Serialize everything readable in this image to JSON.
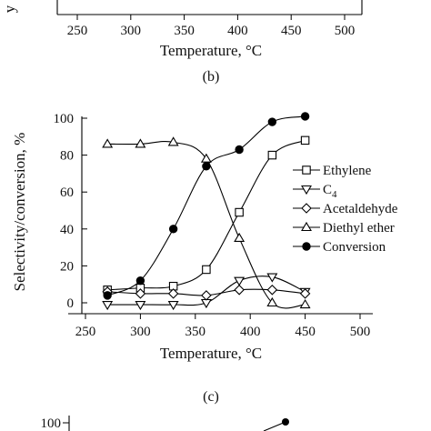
{
  "top_panel": {
    "x_ticks": [
      "250",
      "300",
      "350",
      "400",
      "450",
      "500"
    ],
    "xlabel": "Temperature, °C",
    "caption": "(b)",
    "clipped_y_label": "y"
  },
  "chart_data": {
    "type": "line",
    "caption": "(c)",
    "xlabel": "Temperature, °C",
    "ylabel": "Selectivity/conversion, %",
    "xlim": [
      250,
      500
    ],
    "ylim": [
      -10,
      105
    ],
    "x_ticks": [
      250,
      300,
      350,
      400,
      450,
      500
    ],
    "y_ticks": [
      0,
      20,
      40,
      60,
      80,
      100
    ],
    "grid": false,
    "legend_position": "right",
    "series": [
      {
        "name": "Ethylene",
        "marker": "square-open",
        "points": [
          [
            270,
            7
          ],
          [
            300,
            8
          ],
          [
            330,
            9
          ],
          [
            360,
            18
          ],
          [
            390,
            49
          ],
          [
            420,
            80
          ],
          [
            450,
            88
          ]
        ]
      },
      {
        "name": "C4",
        "marker": "triangle-down-open",
        "points": [
          [
            270,
            -1
          ],
          [
            300,
            -1
          ],
          [
            330,
            -1
          ],
          [
            360,
            0
          ],
          [
            390,
            12
          ],
          [
            420,
            14
          ],
          [
            450,
            6
          ]
        ]
      },
      {
        "name": "Acetaldehyde",
        "marker": "diamond-open",
        "points": [
          [
            270,
            6
          ],
          [
            300,
            5
          ],
          [
            330,
            5
          ],
          [
            360,
            4
          ],
          [
            390,
            7
          ],
          [
            420,
            7
          ],
          [
            450,
            5
          ]
        ]
      },
      {
        "name": "Diethyl ether",
        "marker": "triangle-up-open",
        "points": [
          [
            270,
            86
          ],
          [
            300,
            86
          ],
          [
            330,
            87
          ],
          [
            360,
            78
          ],
          [
            390,
            35
          ],
          [
            420,
            0
          ],
          [
            450,
            -1
          ]
        ]
      },
      {
        "name": "Conversion",
        "marker": "circle-filled",
        "points": [
          [
            270,
            4
          ],
          [
            300,
            12
          ],
          [
            330,
            40
          ],
          [
            360,
            74
          ],
          [
            390,
            83
          ],
          [
            420,
            98
          ],
          [
            450,
            101
          ]
        ]
      }
    ]
  },
  "bottom_panel": {
    "visible_y_tick": "100"
  }
}
